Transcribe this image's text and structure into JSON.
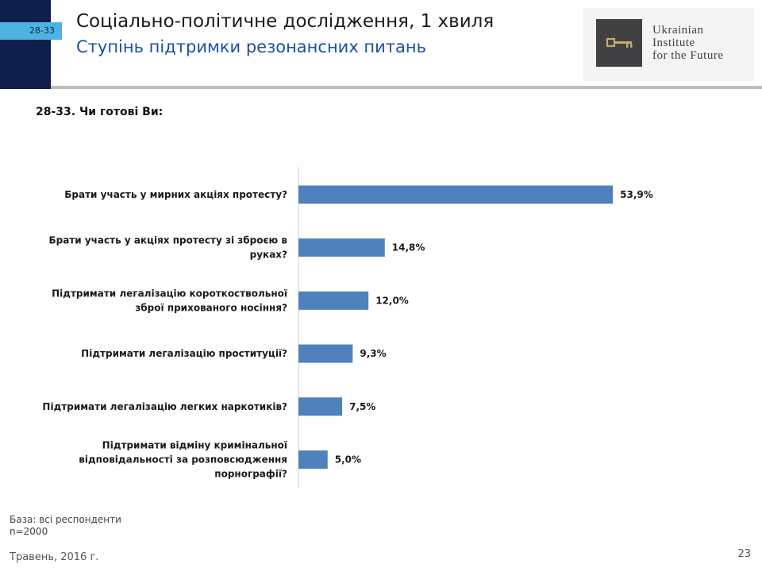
{
  "header": {
    "slide_tag": "28-33",
    "title": "Соціально-політичне дослідження, 1 хвиля",
    "subtitle": "Ступінь підтримки резонансних питань",
    "logo_lines": [
      "Ukrainian",
      "Institute",
      "for the Future"
    ]
  },
  "question": "28-33. Чи готові Ви:",
  "chart_data": {
    "type": "bar",
    "orientation": "horizontal",
    "categories": [
      [
        "Брати участь у мирних акціях протесту?"
      ],
      [
        "Брати участь у акціях протесту зі зброєю в",
        "руках?"
      ],
      [
        "Підтримати легалізацію короткоствольної",
        "зброї прихованого носіння?"
      ],
      [
        "Підтримати легалізацію проституції?"
      ],
      [
        "Підтримати легалізацію легких наркотиків?"
      ],
      [
        "Підтримати відміну кримінальної",
        "відповідальності за розповсюдження",
        "порнографії?"
      ]
    ],
    "values": [
      53.9,
      14.8,
      12.0,
      9.3,
      7.5,
      5.0
    ],
    "value_labels": [
      "53,9%",
      "14,8%",
      "12,0%",
      "9,3%",
      "7,5%",
      "5,0%"
    ],
    "bar_color": "#4f81bd",
    "xlim": [
      0,
      100
    ],
    "grid": false,
    "legend": "none"
  },
  "footer": {
    "base_line1": "База: всі респонденти",
    "base_line2": "n=2000",
    "date": "Травень, 2016 г.",
    "page_number": "23"
  },
  "colors": {
    "navy": "#0f1f4b",
    "tag_blue": "#4eb3e3",
    "subtitle_blue": "#1e4fa3",
    "logo_gold": "#c8a96a"
  }
}
